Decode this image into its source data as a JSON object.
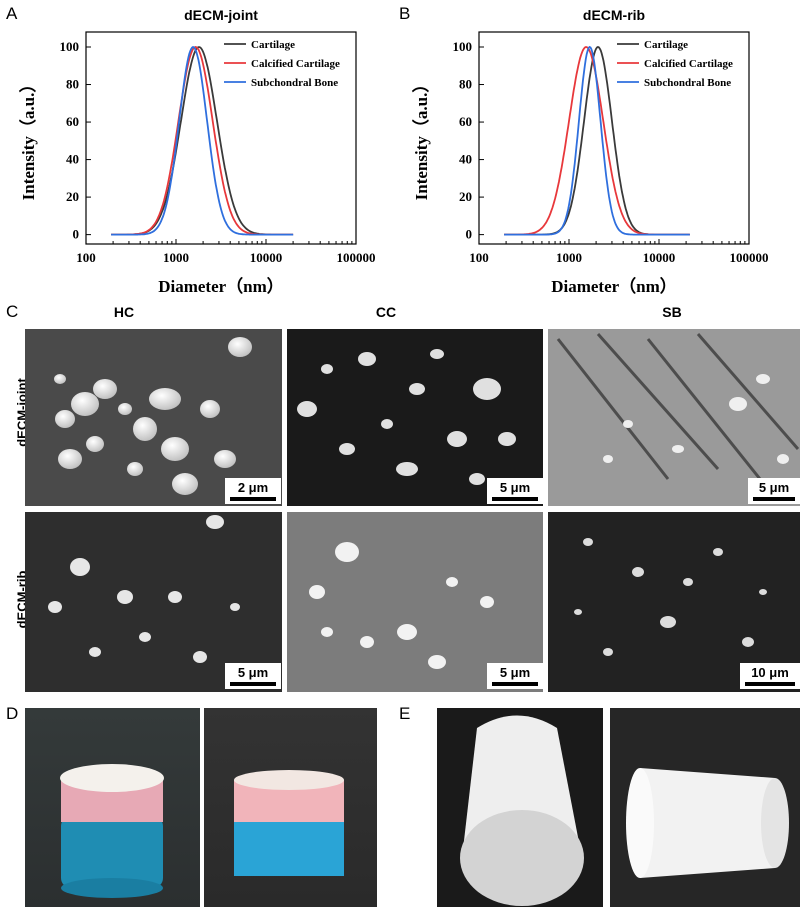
{
  "panel_labels": {
    "A": "A",
    "B": "B",
    "C": "C",
    "D": "D",
    "E": "E"
  },
  "chart_data": [
    {
      "type": "line",
      "title": "dECM-joint",
      "xlabel": "Diameter（nm）",
      "ylabel": "Intensity（a.u.）",
      "x_scale": "log",
      "xlim": [
        100,
        100000
      ],
      "ylim": [
        -5,
        108
      ],
      "x_ticks": [
        "100",
        "1000",
        "10000",
        "100000"
      ],
      "y_ticks": [
        "0",
        "20",
        "40",
        "60",
        "80",
        "100"
      ],
      "legend_position": "top-right",
      "series": [
        {
          "name": "Cartilage",
          "color": "#3a3a3a",
          "peak": 1800,
          "sigma": 0.2,
          "x": [
            190,
            20000
          ]
        },
        {
          "name": "Calcified Cartilage",
          "color": "#e8383b",
          "peak": 1650,
          "sigma": 0.19,
          "x": [
            190,
            20000
          ]
        },
        {
          "name": "Subchondral Bone",
          "color": "#2f6fde",
          "peak": 1550,
          "sigma": 0.155,
          "x": [
            190,
            20000
          ]
        }
      ]
    },
    {
      "type": "line",
      "title": "dECM-rib",
      "xlabel": "Diameter（nm）",
      "ylabel": "Intensity（a.u.）",
      "x_scale": "log",
      "xlim": [
        100,
        100000
      ],
      "ylim": [
        -5,
        108
      ],
      "x_ticks": [
        "100",
        "1000",
        "10000",
        "100000"
      ],
      "y_ticks": [
        "0",
        "20",
        "40",
        "60",
        "80",
        "100"
      ],
      "legend_position": "top-right",
      "series": [
        {
          "name": "Cartilage",
          "color": "#3a3a3a",
          "peak": 2100,
          "sigma": 0.155,
          "x": [
            190,
            22000
          ]
        },
        {
          "name": "Calcified Cartilage",
          "color": "#e8383b",
          "peak": 1550,
          "sigma": 0.19,
          "x": [
            190,
            22000
          ]
        },
        {
          "name": "Subchondral Bone",
          "color": "#2f6fde",
          "peak": 1700,
          "sigma": 0.12,
          "x": [
            190,
            22000
          ]
        }
      ]
    }
  ],
  "afm": {
    "columns": [
      "HC",
      "CC",
      "SB"
    ],
    "rows": [
      "dECM-joint",
      "dECM-rib"
    ],
    "scale_bars": [
      [
        "2 μm",
        "5 μm",
        "5 μm"
      ],
      [
        "5 μm",
        "5 μm",
        "10 μm"
      ]
    ]
  }
}
